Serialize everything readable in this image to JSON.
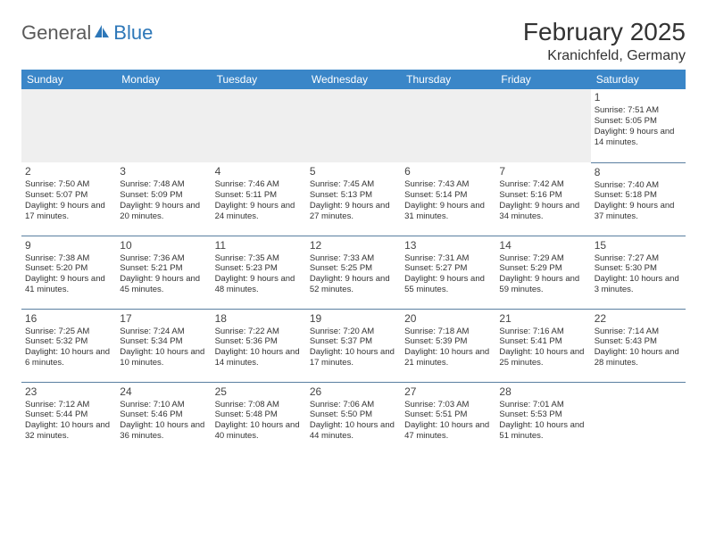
{
  "brand": {
    "word1": "General",
    "word2": "Blue",
    "logo_color": "#2d77b8",
    "text_color": "#5a5a5a"
  },
  "title": {
    "month": "February 2025",
    "location": "Kranichfeld, Germany"
  },
  "colors": {
    "header_bg": "#3a86c8",
    "header_fg": "#ffffff",
    "rule": "#5a7fa0",
    "grayrow": "#efefef"
  },
  "weekdays": [
    "Sunday",
    "Monday",
    "Tuesday",
    "Wednesday",
    "Thursday",
    "Friday",
    "Saturday"
  ],
  "grid": [
    [
      null,
      null,
      null,
      null,
      null,
      null,
      {
        "n": "1",
        "sr": "Sunrise: 7:51 AM",
        "ss": "Sunset: 5:05 PM",
        "dl": "Daylight: 9 hours and 14 minutes."
      }
    ],
    [
      {
        "n": "2",
        "sr": "Sunrise: 7:50 AM",
        "ss": "Sunset: 5:07 PM",
        "dl": "Daylight: 9 hours and 17 minutes."
      },
      {
        "n": "3",
        "sr": "Sunrise: 7:48 AM",
        "ss": "Sunset: 5:09 PM",
        "dl": "Daylight: 9 hours and 20 minutes."
      },
      {
        "n": "4",
        "sr": "Sunrise: 7:46 AM",
        "ss": "Sunset: 5:11 PM",
        "dl": "Daylight: 9 hours and 24 minutes."
      },
      {
        "n": "5",
        "sr": "Sunrise: 7:45 AM",
        "ss": "Sunset: 5:13 PM",
        "dl": "Daylight: 9 hours and 27 minutes."
      },
      {
        "n": "6",
        "sr": "Sunrise: 7:43 AM",
        "ss": "Sunset: 5:14 PM",
        "dl": "Daylight: 9 hours and 31 minutes."
      },
      {
        "n": "7",
        "sr": "Sunrise: 7:42 AM",
        "ss": "Sunset: 5:16 PM",
        "dl": "Daylight: 9 hours and 34 minutes."
      },
      {
        "n": "8",
        "sr": "Sunrise: 7:40 AM",
        "ss": "Sunset: 5:18 PM",
        "dl": "Daylight: 9 hours and 37 minutes."
      }
    ],
    [
      {
        "n": "9",
        "sr": "Sunrise: 7:38 AM",
        "ss": "Sunset: 5:20 PM",
        "dl": "Daylight: 9 hours and 41 minutes."
      },
      {
        "n": "10",
        "sr": "Sunrise: 7:36 AM",
        "ss": "Sunset: 5:21 PM",
        "dl": "Daylight: 9 hours and 45 minutes."
      },
      {
        "n": "11",
        "sr": "Sunrise: 7:35 AM",
        "ss": "Sunset: 5:23 PM",
        "dl": "Daylight: 9 hours and 48 minutes."
      },
      {
        "n": "12",
        "sr": "Sunrise: 7:33 AM",
        "ss": "Sunset: 5:25 PM",
        "dl": "Daylight: 9 hours and 52 minutes."
      },
      {
        "n": "13",
        "sr": "Sunrise: 7:31 AM",
        "ss": "Sunset: 5:27 PM",
        "dl": "Daylight: 9 hours and 55 minutes."
      },
      {
        "n": "14",
        "sr": "Sunrise: 7:29 AM",
        "ss": "Sunset: 5:29 PM",
        "dl": "Daylight: 9 hours and 59 minutes."
      },
      {
        "n": "15",
        "sr": "Sunrise: 7:27 AM",
        "ss": "Sunset: 5:30 PM",
        "dl": "Daylight: 10 hours and 3 minutes."
      }
    ],
    [
      {
        "n": "16",
        "sr": "Sunrise: 7:25 AM",
        "ss": "Sunset: 5:32 PM",
        "dl": "Daylight: 10 hours and 6 minutes."
      },
      {
        "n": "17",
        "sr": "Sunrise: 7:24 AM",
        "ss": "Sunset: 5:34 PM",
        "dl": "Daylight: 10 hours and 10 minutes."
      },
      {
        "n": "18",
        "sr": "Sunrise: 7:22 AM",
        "ss": "Sunset: 5:36 PM",
        "dl": "Daylight: 10 hours and 14 minutes."
      },
      {
        "n": "19",
        "sr": "Sunrise: 7:20 AM",
        "ss": "Sunset: 5:37 PM",
        "dl": "Daylight: 10 hours and 17 minutes."
      },
      {
        "n": "20",
        "sr": "Sunrise: 7:18 AM",
        "ss": "Sunset: 5:39 PM",
        "dl": "Daylight: 10 hours and 21 minutes."
      },
      {
        "n": "21",
        "sr": "Sunrise: 7:16 AM",
        "ss": "Sunset: 5:41 PM",
        "dl": "Daylight: 10 hours and 25 minutes."
      },
      {
        "n": "22",
        "sr": "Sunrise: 7:14 AM",
        "ss": "Sunset: 5:43 PM",
        "dl": "Daylight: 10 hours and 28 minutes."
      }
    ],
    [
      {
        "n": "23",
        "sr": "Sunrise: 7:12 AM",
        "ss": "Sunset: 5:44 PM",
        "dl": "Daylight: 10 hours and 32 minutes."
      },
      {
        "n": "24",
        "sr": "Sunrise: 7:10 AM",
        "ss": "Sunset: 5:46 PM",
        "dl": "Daylight: 10 hours and 36 minutes."
      },
      {
        "n": "25",
        "sr": "Sunrise: 7:08 AM",
        "ss": "Sunset: 5:48 PM",
        "dl": "Daylight: 10 hours and 40 minutes."
      },
      {
        "n": "26",
        "sr": "Sunrise: 7:06 AM",
        "ss": "Sunset: 5:50 PM",
        "dl": "Daylight: 10 hours and 44 minutes."
      },
      {
        "n": "27",
        "sr": "Sunrise: 7:03 AM",
        "ss": "Sunset: 5:51 PM",
        "dl": "Daylight: 10 hours and 47 minutes."
      },
      {
        "n": "28",
        "sr": "Sunrise: 7:01 AM",
        "ss": "Sunset: 5:53 PM",
        "dl": "Daylight: 10 hours and 51 minutes."
      },
      null
    ]
  ]
}
